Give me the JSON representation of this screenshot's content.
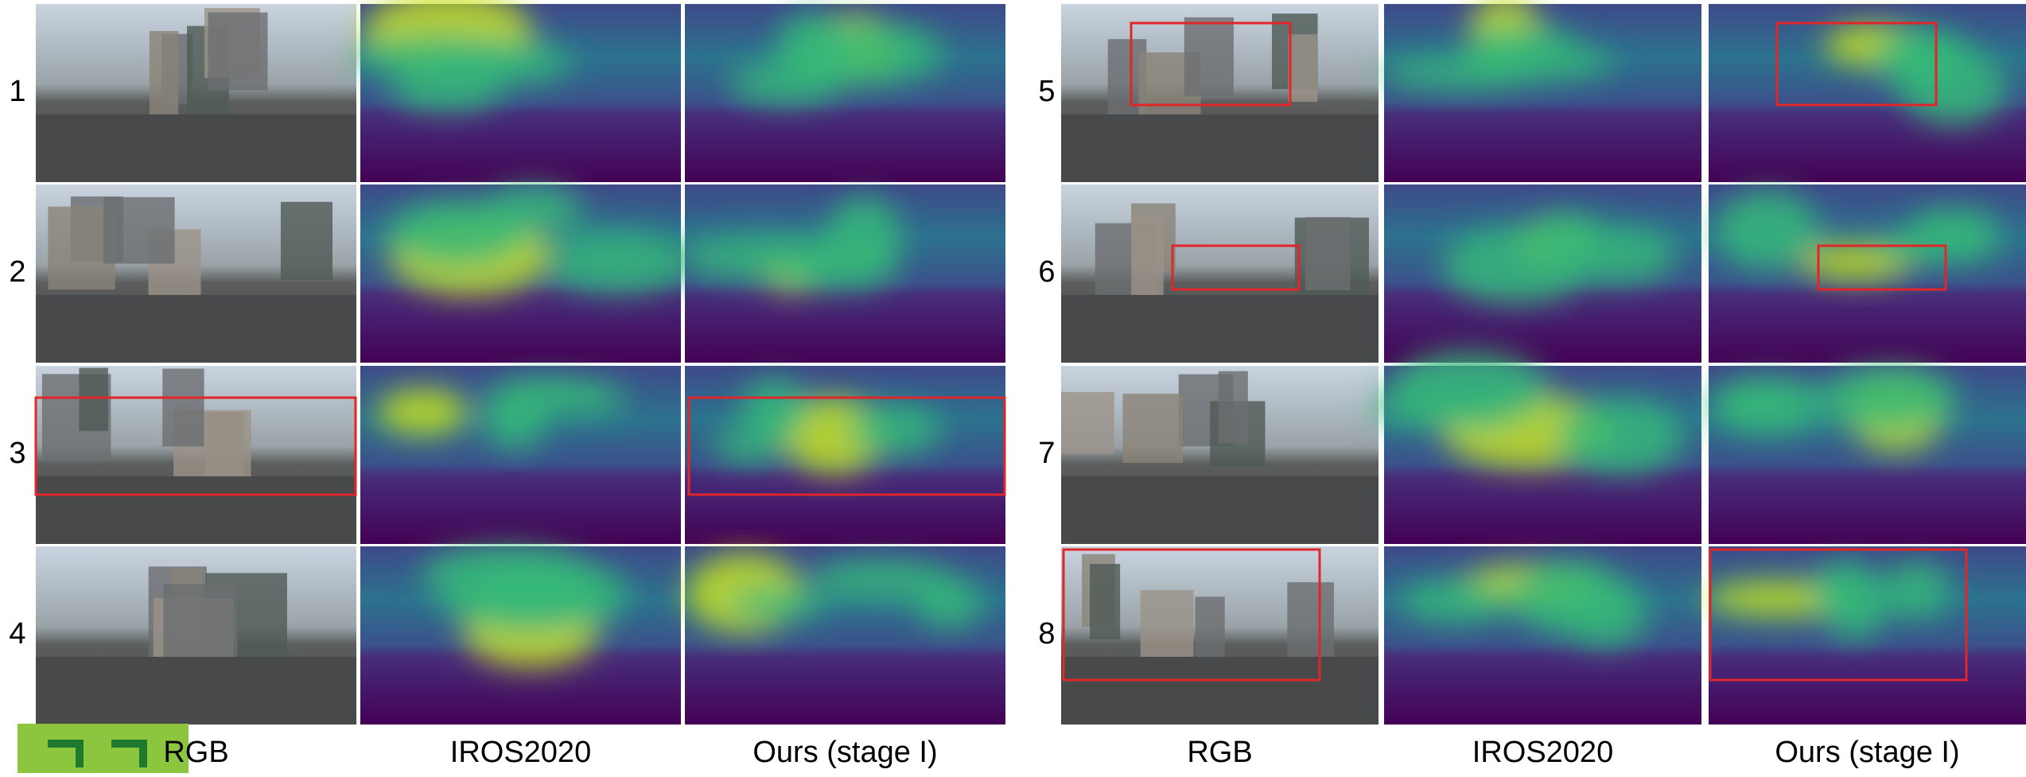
{
  "panels": [
    {
      "rows": [
        "1",
        "2",
        "3",
        "4"
      ],
      "columns": [
        "RGB",
        "IROS2020",
        "Ours (stage I)"
      ]
    },
    {
      "rows": [
        "5",
        "6",
        "7",
        "8"
      ],
      "columns": [
        "RGB",
        "IROS2020",
        "Ours (stage I)"
      ]
    }
  ]
}
